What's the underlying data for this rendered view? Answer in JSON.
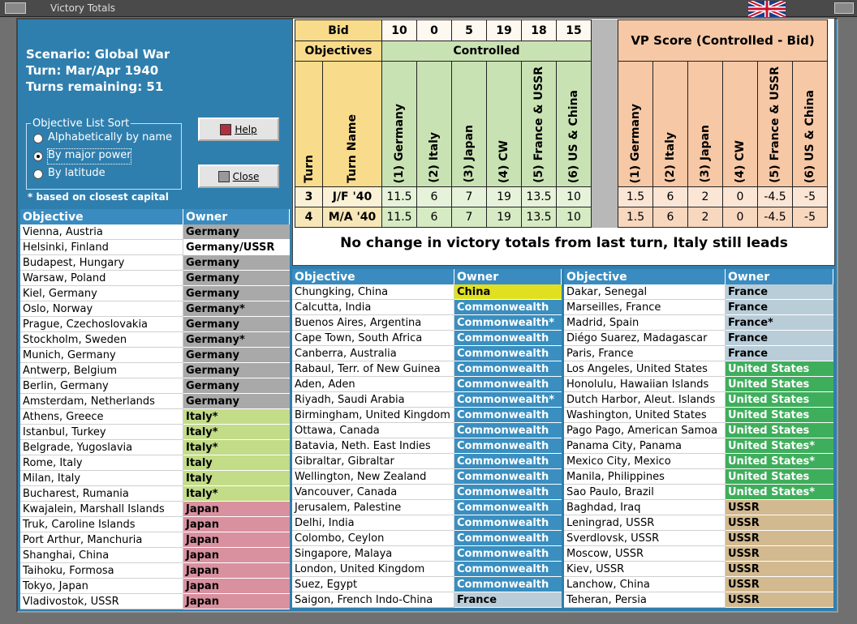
{
  "window": {
    "title": "Victory Totals"
  },
  "info": {
    "scenario": "Scenario: Global War",
    "turn": "Turn: Mar/Apr 1940",
    "turns_remaining": "Turns remaining: 51"
  },
  "sort": {
    "title": "Objective List Sort",
    "options": [
      "Alphabetically by name",
      "By major power",
      "By latitude"
    ],
    "selected": 1,
    "note": "* based on closest capital"
  },
  "buttons": [
    "Help",
    "Close"
  ],
  "score": {
    "bid_label": "Bid",
    "bids": [
      10,
      0,
      5,
      19,
      18,
      15
    ],
    "objectives_label": "Objectives",
    "controlled_label": "Controlled",
    "vp_label": "VP Score (Controlled - Bid)",
    "turn_label": "Turn",
    "turn_name_label": "Turn Name",
    "powers": [
      "(1) Germany",
      "(2) Italy",
      "(3) Japan",
      "(4) CW",
      "(5) France & USSR",
      "(6) US & China"
    ],
    "rows": [
      {
        "turn": 3,
        "name": "J/F '40",
        "controlled": [
          11.5,
          6,
          7,
          19,
          13.5,
          10
        ],
        "vp": [
          1.5,
          6,
          2,
          0,
          -4.5,
          -5
        ]
      },
      {
        "turn": 4,
        "name": "M/A '40",
        "controlled": [
          11.5,
          6,
          7,
          19,
          13.5,
          10
        ],
        "vp": [
          1.5,
          6,
          2,
          0,
          -4.5,
          -5
        ]
      }
    ],
    "message": "No change in victory totals from last turn, Italy still leads"
  },
  "lists": [
    {
      "header": [
        "Objective",
        "Owner"
      ],
      "rows": [
        [
          "Vienna, Austria",
          "Germany",
          "#a9a9a9"
        ],
        [
          "Helsinki, Finland",
          "Germany/USSR",
          "#ffffff"
        ],
        [
          "Budapest, Hungary",
          "Germany",
          "#a9a9a9"
        ],
        [
          "Warsaw, Poland",
          "Germany",
          "#a9a9a9"
        ],
        [
          "Kiel, Germany",
          "Germany",
          "#a9a9a9"
        ],
        [
          "Oslo, Norway",
          "Germany*",
          "#a9a9a9"
        ],
        [
          "Prague, Czechoslovakia",
          "Germany",
          "#a9a9a9"
        ],
        [
          "Stockholm, Sweden",
          "Germany*",
          "#a9a9a9"
        ],
        [
          "Munich, Germany",
          "Germany",
          "#a9a9a9"
        ],
        [
          "Antwerp, Belgium",
          "Germany",
          "#a9a9a9"
        ],
        [
          "Berlin, Germany",
          "Germany",
          "#a9a9a9"
        ],
        [
          "Amsterdam, Netherlands",
          "Germany",
          "#a9a9a9"
        ],
        [
          "Athens, Greece",
          "Italy*",
          "#c3dc88"
        ],
        [
          "Istanbul, Turkey",
          "Italy*",
          "#c3dc88"
        ],
        [
          "Belgrade, Yugoslavia",
          "Italy*",
          "#c3dc88"
        ],
        [
          "Rome, Italy",
          "Italy",
          "#c3dc88"
        ],
        [
          "Milan, Italy",
          "Italy",
          "#c3dc88"
        ],
        [
          "Bucharest, Rumania",
          "Italy*",
          "#c3dc88"
        ],
        [
          "Kwajalein, Marshall Islands",
          "Japan",
          "#d9909f"
        ],
        [
          "Truk, Caroline Islands",
          "Japan",
          "#d9909f"
        ],
        [
          "Port Arthur, Manchuria",
          "Japan",
          "#d9909f"
        ],
        [
          "Shanghai, China",
          "Japan",
          "#d9909f"
        ],
        [
          "Taihoku, Formosa",
          "Japan",
          "#d9909f"
        ],
        [
          "Tokyo, Japan",
          "Japan",
          "#d9909f"
        ],
        [
          "Vladivostok, USSR",
          "Japan",
          "#d9909f"
        ]
      ]
    },
    {
      "header": [
        "Objective",
        "Owner"
      ],
      "rows": [
        [
          "Chungking, China",
          "China",
          "#e0e020"
        ],
        [
          "Calcutta, India",
          "Commonwealth",
          "#3a8fc0"
        ],
        [
          "Buenos Aires, Argentina",
          "Commonwealth*",
          "#3a8fc0"
        ],
        [
          "Cape Town, South Africa",
          "Commonwealth",
          "#3a8fc0"
        ],
        [
          "Canberra, Australia",
          "Commonwealth",
          "#3a8fc0"
        ],
        [
          "Rabaul, Terr. of New Guinea",
          "Commonwealth",
          "#3a8fc0"
        ],
        [
          "Aden, Aden",
          "Commonwealth",
          "#3a8fc0"
        ],
        [
          "Riyadh, Saudi Arabia",
          "Commonwealth*",
          "#3a8fc0"
        ],
        [
          "Birmingham, United Kingdom",
          "Commonwealth",
          "#3a8fc0"
        ],
        [
          "Ottawa, Canada",
          "Commonwealth",
          "#3a8fc0"
        ],
        [
          "Batavia, Neth. East Indies",
          "Commonwealth",
          "#3a8fc0"
        ],
        [
          "Gibraltar, Gibraltar",
          "Commonwealth",
          "#3a8fc0"
        ],
        [
          "Wellington, New Zealand",
          "Commonwealth",
          "#3a8fc0"
        ],
        [
          "Vancouver, Canada",
          "Commonwealth",
          "#3a8fc0"
        ],
        [
          "Jerusalem, Palestine",
          "Commonwealth",
          "#3a8fc0"
        ],
        [
          "Delhi, India",
          "Commonwealth",
          "#3a8fc0"
        ],
        [
          "Colombo, Ceylon",
          "Commonwealth",
          "#3a8fc0"
        ],
        [
          "Singapore, Malaya",
          "Commonwealth",
          "#3a8fc0"
        ],
        [
          "London, United Kingdom",
          "Commonwealth",
          "#3a8fc0"
        ],
        [
          "Suez, Egypt",
          "Commonwealth",
          "#3a8fc0"
        ],
        [
          "Saigon, French Indo-China",
          "France",
          "#b9cdd9"
        ]
      ]
    },
    {
      "header": [
        "Objective",
        "Owner"
      ],
      "rows": [
        [
          "Dakar, Senegal",
          "France",
          "#b9cdd9"
        ],
        [
          "Marseilles, France",
          "France",
          "#b9cdd9"
        ],
        [
          "Madrid, Spain",
          "France*",
          "#b9cdd9"
        ],
        [
          "Diégo Suarez, Madagascar",
          "France",
          "#b9cdd9"
        ],
        [
          "Paris, France",
          "France",
          "#b9cdd9"
        ],
        [
          "Los Angeles, United States",
          "United States",
          "#3fae5c"
        ],
        [
          "Honolulu, Hawaiian Islands",
          "United States",
          "#3fae5c"
        ],
        [
          "Dutch Harbor, Aleut. Islands",
          "United States",
          "#3fae5c"
        ],
        [
          "Washington, United States",
          "United States",
          "#3fae5c"
        ],
        [
          "Pago Pago, American Samoa",
          "United States",
          "#3fae5c"
        ],
        [
          "Panama City, Panama",
          "United States*",
          "#3fae5c"
        ],
        [
          "Mexico City, Mexico",
          "United States*",
          "#3fae5c"
        ],
        [
          "Manila, Philippines",
          "United States",
          "#3fae5c"
        ],
        [
          "Sao Paulo, Brazil",
          "United States*",
          "#3fae5c"
        ],
        [
          "Baghdad, Iraq",
          "USSR",
          "#d2b98f"
        ],
        [
          "Leningrad, USSR",
          "USSR",
          "#d2b98f"
        ],
        [
          "Sverdlovsk, USSR",
          "USSR",
          "#d2b98f"
        ],
        [
          "Moscow, USSR",
          "USSR",
          "#d2b98f"
        ],
        [
          "Kiev, USSR",
          "USSR",
          "#d2b98f"
        ],
        [
          "Lanchow, China",
          "USSR",
          "#d2b98f"
        ],
        [
          "Teheran, Persia",
          "USSR",
          "#d2b98f"
        ]
      ]
    }
  ]
}
